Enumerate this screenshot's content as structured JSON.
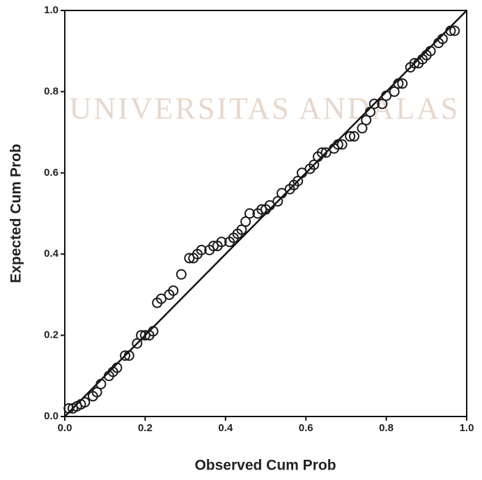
{
  "chart_data": {
    "type": "scatter",
    "watermark": "UNIVERSITAS ANDALAS",
    "x_label": "Observed Cum Prob",
    "y_label": "Expected Cum Prob",
    "xlim": [
      0,
      1
    ],
    "ylim": [
      0,
      1
    ],
    "xticks": [
      {
        "value": 0,
        "label": "0.0"
      },
      0.2,
      0.4,
      0.6,
      0.8,
      {
        "value": 1,
        "label": "1.0"
      }
    ],
    "yticks": [
      {
        "value": 0,
        "label": "0.0"
      },
      0.2,
      0.4,
      0.6,
      0.8,
      {
        "value": 1,
        "label": "1.0"
      }
    ],
    "color": "#1a1a1a",
    "x": [
      0.01,
      0.02,
      0.03,
      0.04,
      0.05,
      0.07,
      0.08,
      0.09,
      0.11,
      0.12,
      0.13,
      0.15,
      0.16,
      0.18,
      0.19,
      0.2,
      0.21,
      0.22,
      0.23,
      0.24,
      0.26,
      0.27,
      0.29,
      0.31,
      0.32,
      0.33,
      0.34,
      0.36,
      0.37,
      0.38,
      0.39,
      0.41,
      0.42,
      0.43,
      0.44,
      0.45,
      0.46,
      0.48,
      0.49,
      0.5,
      0.51,
      0.53,
      0.54,
      0.56,
      0.57,
      0.58,
      0.59,
      0.61,
      0.62,
      0.63,
      0.64,
      0.65,
      0.67,
      0.68,
      0.69,
      0.71,
      0.72,
      0.74,
      0.75,
      0.76,
      0.77,
      0.79,
      0.8,
      0.82,
      0.83,
      0.84,
      0.86,
      0.87,
      0.88,
      0.89,
      0.9,
      0.91,
      0.93,
      0.94,
      0.96,
      0.97
    ],
    "y": [
      0.02,
      0.02,
      0.025,
      0.03,
      0.035,
      0.05,
      0.06,
      0.08,
      0.1,
      0.11,
      0.12,
      0.15,
      0.15,
      0.18,
      0.2,
      0.2,
      0.2,
      0.21,
      0.28,
      0.29,
      0.3,
      0.31,
      0.35,
      0.39,
      0.39,
      0.4,
      0.41,
      0.41,
      0.42,
      0.42,
      0.43,
      0.43,
      0.44,
      0.45,
      0.46,
      0.48,
      0.5,
      0.5,
      0.51,
      0.51,
      0.52,
      0.53,
      0.55,
      0.56,
      0.57,
      0.58,
      0.6,
      0.61,
      0.62,
      0.64,
      0.65,
      0.65,
      0.66,
      0.67,
      0.67,
      0.69,
      0.69,
      0.71,
      0.73,
      0.75,
      0.77,
      0.77,
      0.79,
      0.8,
      0.82,
      0.82,
      0.86,
      0.87,
      0.87,
      0.88,
      0.89,
      0.9,
      0.92,
      0.93,
      0.95,
      0.95
    ]
  }
}
